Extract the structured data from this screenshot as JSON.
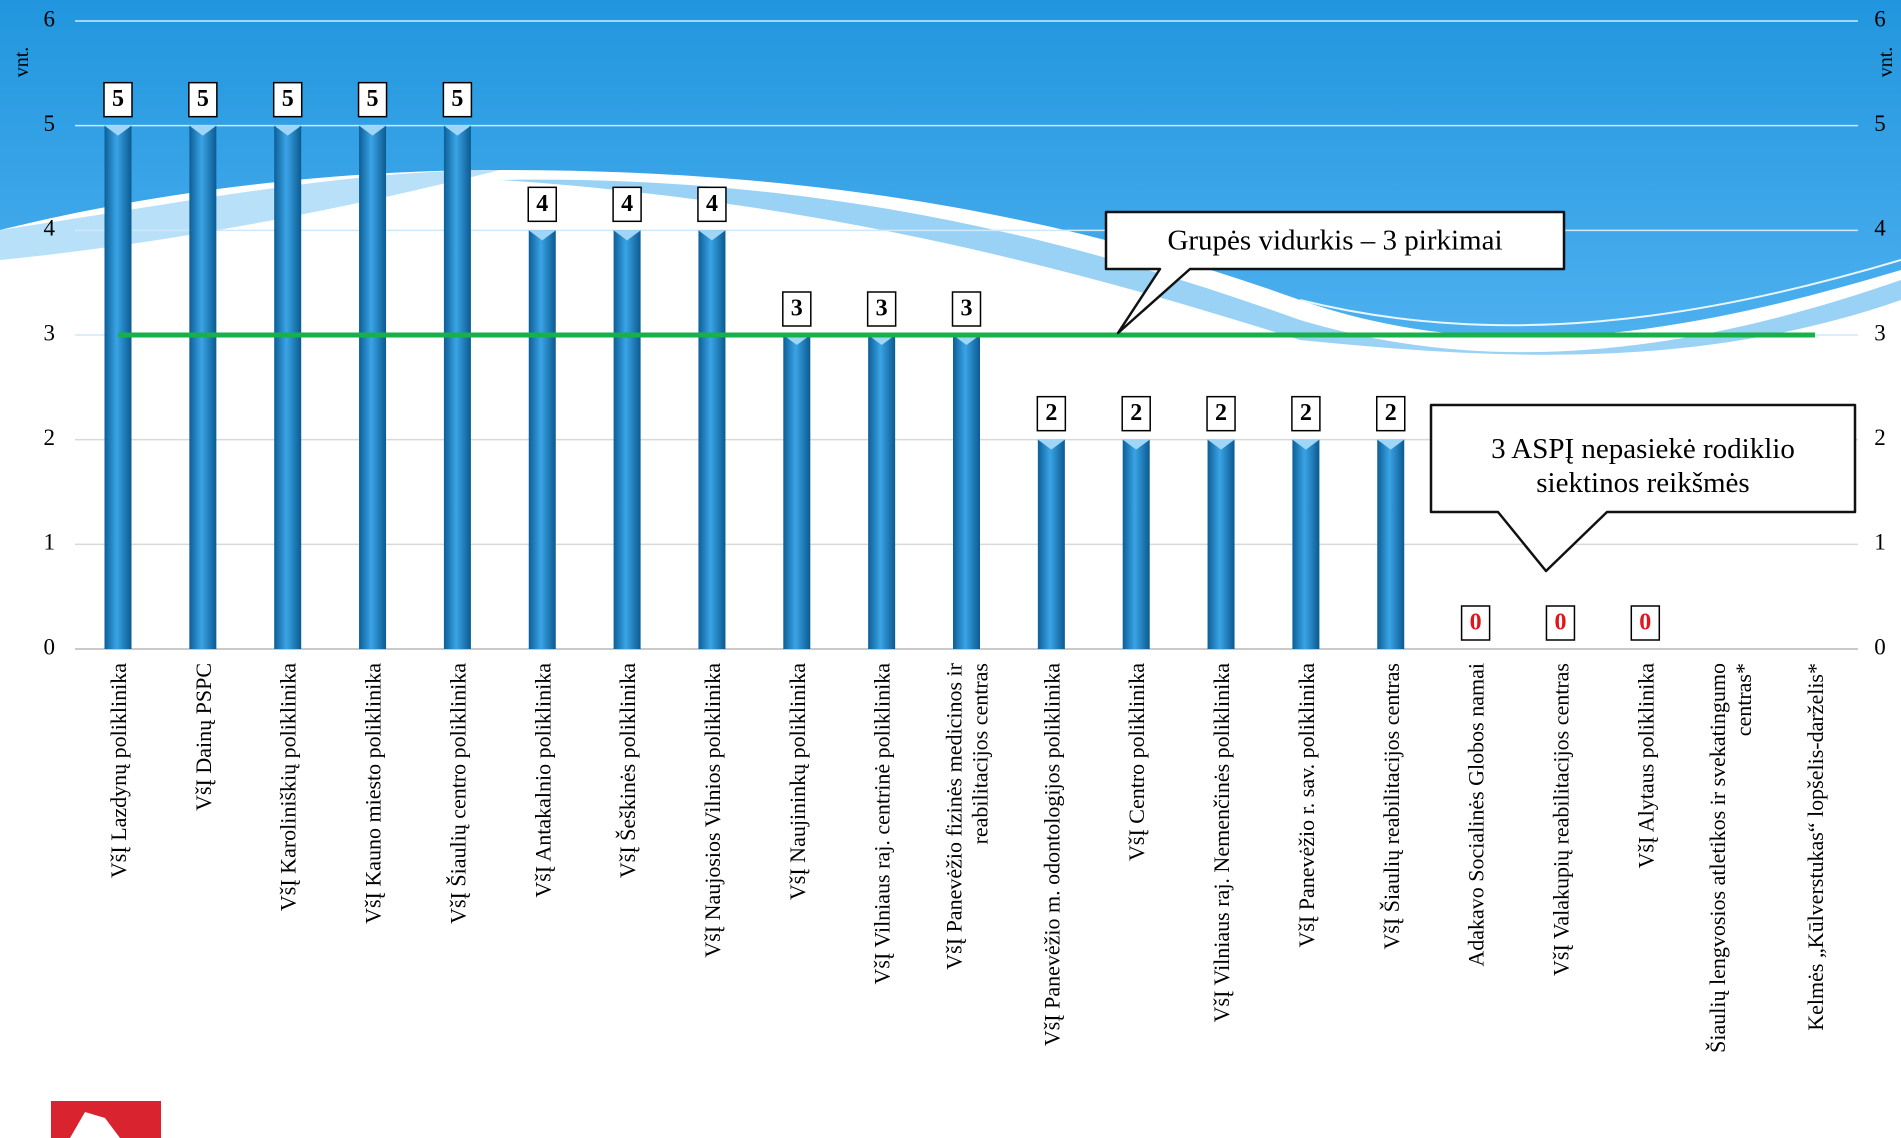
{
  "chart_data": {
    "type": "bar",
    "y_label": "vnt.",
    "y2_label": "vnt.",
    "categories": [
      "VšĮ Lazdynų poliklinika",
      "VšĮ Dainų PSPC",
      "VšĮ Karoliniškių poliklinika",
      "VšĮ Kauno miesto poliklinika",
      "VšĮ Šiaulių centro poliklinika",
      "VšĮ Antakalnio poliklinika",
      "VšĮ Šeškinės poliklinika",
      "VšĮ Naujosios Vilnios poliklinika",
      "VšĮ Naujininkų poliklinika",
      "VšĮ Vilniaus raj. centrinė poliklinika",
      "VšĮ Panevėžio fizinės medicinos ir\nreabilitacijos centras",
      "VšĮ Panevėžio m. odontologijos poliklinika",
      "VšĮ Centro poliklinika",
      "VšĮ Vilniaus raj. Nemenčinės poliklinika",
      "VšĮ Panevėžio r. sav. poliklinika",
      "VšĮ Šiaulių reabilitacijos centras",
      "Adakavo Socialinės Globos namai",
      "VšĮ Valakupių reabilitacijos centras",
      "VšĮ Alytaus poliklinika",
      "Šiaulių lengvosios atletikos ir svekatingumo\ncentras*",
      "Kelmės „Kūlverstukas“ lopšelis-darželis*"
    ],
    "values": [
      5,
      5,
      5,
      5,
      5,
      4,
      4,
      4,
      3,
      3,
      3,
      2,
      2,
      2,
      2,
      2,
      0,
      0,
      0,
      null,
      null
    ],
    "color": "#1e88c8",
    "zero_label_color": "#e0161c",
    "ylim": [
      0,
      6
    ],
    "yticks": [
      0,
      1,
      2,
      3,
      4,
      5,
      6
    ],
    "y2lim": [
      0,
      6
    ],
    "y2ticks": [
      0,
      1,
      2,
      3,
      4,
      5,
      6
    ],
    "grid": true,
    "average": 3,
    "average_color": "#18b04a",
    "annotations": [
      "Grupės vidurkis – 3 pirkimai",
      "3 ASPĮ nepasiekė rodiklio\nsiektinos reikšmės"
    ]
  }
}
